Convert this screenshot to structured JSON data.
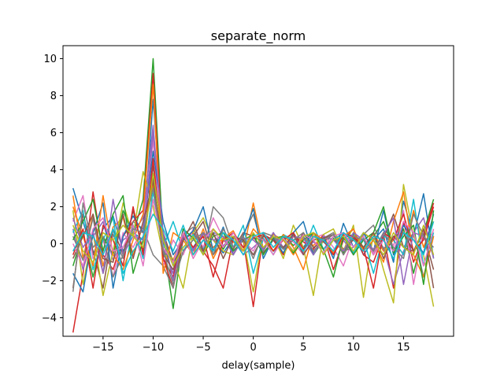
{
  "chart_data": {
    "type": "line",
    "title": "separate_norm",
    "xlabel": "delay(sample)",
    "ylabel": "",
    "xlim": [
      -19,
      20
    ],
    "ylim": [
      -5.0,
      10.7
    ],
    "xticks": [
      -15,
      -10,
      -5,
      0,
      5,
      10,
      15
    ],
    "yticks": [
      -4,
      -2,
      0,
      2,
      4,
      6,
      8,
      10
    ],
    "xtick_labels": [
      "−15",
      "−10",
      "−5",
      "0",
      "5",
      "10",
      "15"
    ],
    "ytick_labels": [
      "−4",
      "−2",
      "0",
      "2",
      "4",
      "6",
      "8",
      "10"
    ],
    "grid": false,
    "x": [
      -18,
      -17,
      -16,
      -15,
      -14,
      -13,
      -12,
      -11,
      -10,
      -9,
      -8,
      -7,
      -6,
      -5,
      -4,
      -3,
      -2,
      -1,
      0,
      1,
      2,
      3,
      4,
      5,
      6,
      7,
      8,
      9,
      10,
      11,
      12,
      13,
      14,
      15,
      16,
      17,
      18
    ],
    "series": [
      {
        "color": "#1f77b4",
        "values": [
          3.0,
          1.2,
          -0.6,
          0.8,
          1.5,
          -0.4,
          0.6,
          0.2,
          7.8,
          0.4,
          -1.2,
          0.3,
          -0.2,
          0.6,
          0.2,
          -0.5,
          0.3,
          0.1,
          -0.6,
          0.4,
          0.2,
          -0.3,
          0.5,
          -0.2,
          0.6,
          0.1,
          -0.4,
          0.3,
          0.5,
          -0.6,
          0.2,
          0.8,
          -1.0,
          2.3,
          0.4,
          2.7,
          -0.8
        ]
      },
      {
        "color": "#ff7f0e",
        "values": [
          2.6,
          -0.8,
          1.6,
          -1.2,
          0.9,
          1.4,
          -0.6,
          1.0,
          3.2,
          -0.4,
          -0.9,
          0.6,
          -0.3,
          0.4,
          -0.2,
          0.3,
          0.1,
          -0.4,
          2.2,
          -0.3,
          0.5,
          0.2,
          -0.6,
          0.3,
          -0.1,
          0.4,
          -0.5,
          0.2,
          0.4,
          -0.3,
          0.6,
          -0.4,
          0.2,
          -0.6,
          1.8,
          -0.2,
          1.2
        ]
      },
      {
        "color": "#2ca02c",
        "values": [
          -1.2,
          0.6,
          -1.8,
          0.4,
          -0.6,
          1.8,
          0.5,
          2.4,
          10.0,
          0.1,
          -3.5,
          0.4,
          -0.6,
          0.2,
          0.5,
          -0.3,
          0.6,
          -0.2,
          0.3,
          0.2,
          -0.4,
          0.5,
          -0.1,
          0.4,
          -0.6,
          0.2,
          0.3,
          -0.5,
          0.6,
          -0.2,
          0.4,
          1.2,
          -0.4,
          0.8,
          -1.6,
          0.6,
          2.4
        ]
      },
      {
        "color": "#d62728",
        "values": [
          -4.8,
          -1.6,
          2.8,
          -0.6,
          -1.4,
          0.4,
          1.2,
          1.8,
          9.2,
          -0.8,
          -2.4,
          0.2,
          0.6,
          -0.4,
          -1.2,
          -2.4,
          0.3,
          0.2,
          -3.4,
          0.5,
          0.2,
          -0.6,
          0.4,
          0.1,
          -0.3,
          0.5,
          -1.4,
          0.2,
          0.8,
          -0.6,
          -1.0,
          0.5,
          -2.4,
          1.2,
          -1.0,
          0.4,
          2.2
        ]
      },
      {
        "color": "#9467bd",
        "values": [
          0.8,
          -1.4,
          0.4,
          1.2,
          -0.9,
          0.2,
          0.6,
          1.4,
          6.4,
          -0.2,
          -1.6,
          0.8,
          -0.3,
          0.5,
          0.2,
          -0.1,
          0.4,
          -0.6,
          -0.2,
          0.3,
          -0.4,
          0.2,
          0.6,
          -0.5,
          0.1,
          -0.3,
          0.4,
          0.2,
          -0.6,
          0.5,
          0.3,
          -0.2,
          -2.2,
          -0.4,
          0.6,
          1.4,
          -0.8
        ]
      },
      {
        "color": "#8c564b",
        "values": [
          -2.4,
          1.6,
          -0.4,
          -2.4,
          0.8,
          -0.6,
          1.8,
          -0.4,
          4.2,
          0.6,
          -1.0,
          -0.2,
          0.4,
          1.2,
          -0.6,
          0.2,
          -0.3,
          0.6,
          0.4,
          -0.5,
          0.2,
          0.3,
          -0.4,
          0.6,
          -0.2,
          0.1,
          0.5,
          -0.3,
          0.2,
          0.4,
          -0.6,
          0.3,
          1.6,
          -0.2,
          -0.4,
          0.6,
          -1.4
        ]
      },
      {
        "color": "#e377c2",
        "values": [
          1.2,
          2.6,
          -0.8,
          0.2,
          -1.8,
          0.6,
          -0.2,
          0.9,
          5.6,
          -1.2,
          0.2,
          -0.6,
          0.8,
          -0.2,
          1.4,
          0.3,
          -0.5,
          0.2,
          -0.4,
          0.6,
          -0.2,
          0.4,
          0.1,
          -0.6,
          0.3,
          0.5,
          -0.2,
          -1.2,
          0.4,
          0.2,
          -0.5,
          0.6,
          -0.1,
          1.8,
          -2.2,
          0.8,
          0.4
        ]
      },
      {
        "color": "#7f7f7f",
        "values": [
          0.4,
          -0.9,
          1.4,
          -1.6,
          0.5,
          -0.8,
          1.2,
          0.8,
          -0.6,
          -1.2,
          -2.4,
          0.5,
          0.9,
          -0.6,
          2.0,
          1.4,
          -0.2,
          0.5,
          1.6,
          -0.4,
          0.6,
          -0.3,
          0.2,
          0.4,
          -0.5,
          0.3,
          0.6,
          -0.4,
          -0.2,
          0.5,
          1.0,
          -0.3,
          0.4,
          -0.2,
          0.6,
          -1.8,
          0.4
        ]
      },
      {
        "color": "#bcbd22",
        "values": [
          1.8,
          -2.2,
          0.6,
          -2.8,
          -0.4,
          2.2,
          0.4,
          3.9,
          2.0,
          -0.6,
          -0.8,
          -2.4,
          0.6,
          1.4,
          0.2,
          -0.4,
          -0.6,
          0.3,
          -2.6,
          0.6,
          0.4,
          -0.8,
          1.0,
          -0.2,
          -2.8,
          0.5,
          0.8,
          -0.4,
          1.0,
          -2.9,
          0.6,
          -1.4,
          -3.2,
          3.2,
          0.4,
          -0.6,
          -3.4
        ]
      },
      {
        "color": "#17becf",
        "values": [
          0.6,
          1.8,
          -1.4,
          0.2,
          1.4,
          -2.0,
          1.0,
          -0.8,
          2.8,
          -0.2,
          1.2,
          -0.4,
          0.5,
          -0.3,
          0.6,
          0.4,
          -0.2,
          1.0,
          -1.6,
          0.3,
          -0.6,
          0.5,
          0.2,
          -0.4,
          1.0,
          -0.3,
          0.2,
          0.6,
          -0.5,
          0.3,
          -1.6,
          0.4,
          0.2,
          -0.6,
          2.4,
          -1.2,
          0.6
        ]
      },
      {
        "color": "#1f77b4",
        "values": [
          -1.6,
          -2.6,
          0.6,
          2.2,
          -2.4,
          0.4,
          1.5,
          0.6,
          5.0,
          1.2,
          -0.6,
          0.2,
          0.7,
          2.0,
          -0.4,
          0.9,
          -0.6,
          0.4,
          1.9,
          -0.8,
          0.3,
          -0.5,
          0.6,
          1.2,
          -0.6,
          0.4,
          -0.8,
          1.1,
          -0.2,
          0.6,
          -0.4,
          1.8,
          -0.6,
          1.0,
          0.2,
          -0.5,
          1.6
        ]
      },
      {
        "color": "#ff7f0e",
        "values": [
          2.0,
          0.4,
          -1.2,
          2.6,
          -0.6,
          -1.4,
          0.2,
          1.6,
          8.6,
          -1.6,
          0.6,
          0.2,
          -0.6,
          0.8,
          -0.8,
          0.3,
          0.7,
          -0.4,
          0.8,
          0.2,
          -0.4,
          0.5,
          -0.2,
          -1.4,
          0.6,
          0.2,
          -0.6,
          0.4,
          0.8,
          -0.4,
          0.2,
          -1.0,
          1.2,
          2.8,
          -0.6,
          -1.8,
          0.4
        ]
      },
      {
        "color": "#2ca02c",
        "values": [
          0.2,
          1.2,
          2.4,
          -0.4,
          1.6,
          2.6,
          -1.6,
          0.2,
          3.6,
          0.4,
          -2.0,
          0.8,
          0.3,
          -0.6,
          0.4,
          0.6,
          -0.4,
          0.2,
          0.5,
          -0.6,
          0.3,
          0.4,
          -0.5,
          0.2,
          0.6,
          -0.3,
          -1.8,
          0.4,
          -0.6,
          0.2,
          0.6,
          2.0,
          -0.5,
          0.4,
          1.0,
          -2.2,
          1.8
        ]
      },
      {
        "color": "#d62728",
        "values": [
          -0.6,
          0.8,
          -2.4,
          1.0,
          0.2,
          -1.2,
          2.0,
          -0.6,
          4.6,
          -0.8,
          -1.8,
          0.6,
          -0.2,
          0.4,
          -1.8,
          0.2,
          0.6,
          -0.2,
          0.3,
          0.5,
          -0.4,
          0.2,
          0.6,
          -0.3,
          0.4,
          0.2,
          -0.6,
          0.5,
          0.4,
          -0.2,
          -2.4,
          0.6,
          0.2,
          1.6,
          -0.4,
          0.2,
          2.0
        ]
      },
      {
        "color": "#9467bd",
        "values": [
          1.4,
          -0.2,
          0.6,
          -1.6,
          2.4,
          -0.6,
          0.4,
          0.2,
          6.0,
          0.6,
          -2.0,
          0.4,
          -0.4,
          0.6,
          0.2,
          0.4,
          -0.6,
          0.3,
          0.2,
          -0.3,
          0.6,
          -0.2,
          0.4,
          0.3,
          -0.6,
          0.4,
          0.2,
          -0.4,
          0.6,
          0.2,
          -0.3,
          0.5,
          1.4,
          -2.2,
          0.6,
          0.4,
          -0.6
        ]
      },
      {
        "color": "#8c564b",
        "values": [
          -0.8,
          0.4,
          1.6,
          -0.8,
          -1.0,
          1.6,
          -0.8,
          1.2,
          3.4,
          -0.6,
          -1.4,
          0.2,
          1.2,
          -0.4,
          0.6,
          -0.8,
          0.4,
          0.2,
          -0.6,
          0.4,
          0.2,
          -0.2,
          0.5,
          -0.6,
          0.2,
          0.3,
          0.5,
          -0.6,
          0.3,
          -0.2,
          0.6,
          -0.8,
          0.4,
          0.6,
          -0.4,
          0.8,
          -2.4
        ]
      },
      {
        "color": "#e377c2",
        "values": [
          0.0,
          -1.2,
          0.8,
          1.4,
          -0.4,
          -0.2,
          1.0,
          -1.2,
          2.4,
          -0.2,
          -1.0,
          0.6,
          -0.8,
          0.2,
          0.8,
          -0.2,
          0.6,
          -0.4,
          0.4,
          0.2,
          -0.6,
          0.3,
          -0.4,
          0.5,
          0.2,
          -0.5,
          0.4,
          0.6,
          -0.2,
          0.4,
          -0.6,
          0.2,
          -0.4,
          1.2,
          0.6,
          -1.2,
          0.8
        ]
      },
      {
        "color": "#7f7f7f",
        "values": [
          -2.6,
          2.2,
          -0.2,
          0.4,
          -1.8,
          -0.6,
          0.8,
          0.6,
          3.0,
          -0.4,
          -2.2,
          -0.4,
          0.2,
          0.6,
          -0.6,
          0.8,
          -0.2,
          0.4,
          -0.8,
          0.6,
          0.4,
          -0.3,
          0.2,
          0.6,
          -0.4,
          0.2,
          0.5,
          -0.6,
          0.4,
          0.2,
          -0.4,
          0.6,
          -0.2,
          -0.8,
          1.6,
          0.4,
          -0.2
        ]
      },
      {
        "color": "#bcbd22",
        "values": [
          1.0,
          -0.4,
          -1.0,
          0.6,
          0.2,
          1.0,
          0.4,
          -0.2,
          3.8,
          0.2,
          -1.2,
          -0.2,
          0.4,
          -0.6,
          0.8,
          0.2,
          0.4,
          -0.4,
          0.6,
          -0.2,
          0.4,
          0.2,
          -0.4,
          0.4,
          0.6,
          -0.6,
          0.2,
          0.4,
          -0.4,
          0.6,
          0.2,
          -0.6,
          0.6,
          -0.2,
          -0.6,
          1.0,
          -0.6
        ]
      },
      {
        "color": "#17becf",
        "values": [
          -0.4,
          0.6,
          0.4,
          -0.6,
          0.8,
          -1.6,
          -0.4,
          0.4,
          1.6,
          0.8,
          -0.4,
          1.0,
          -0.6,
          0.2,
          -0.4,
          0.6,
          0.2,
          -0.6,
          0.4,
          0.6,
          -0.2,
          0.4,
          0.2,
          -0.4,
          0.4,
          0.2,
          -0.4,
          0.6,
          0.2,
          -0.4,
          0.4,
          0.2,
          -0.8,
          0.6,
          0.2,
          -0.6,
          1.2
        ]
      }
    ]
  }
}
